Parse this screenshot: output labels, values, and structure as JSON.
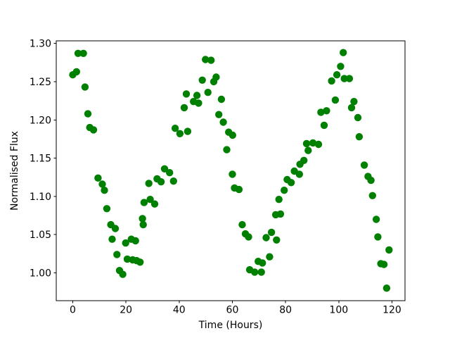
{
  "figure": {
    "background": "#ffffff"
  },
  "chart_data": {
    "type": "scatter",
    "title": "",
    "xlabel": "Time (Hours)",
    "ylabel": "Normalised Flux",
    "xlim": [
      -6.2,
      124.9
    ],
    "ylim": [
      0.9636,
      1.3034
    ],
    "xticks": [
      0,
      20,
      40,
      60,
      80,
      100,
      120
    ],
    "yticks": [
      1.0,
      1.05,
      1.1,
      1.15,
      1.2,
      1.25,
      1.3
    ],
    "grid": false,
    "legend": null,
    "marker": {
      "shape": "circle",
      "color": "#008000",
      "radius": 5.2
    },
    "series": [
      {
        "name": "normalised-flux-light-curve",
        "points": [
          [
            0.0,
            1.259
          ],
          [
            1.4,
            1.263
          ],
          [
            2.0,
            1.287
          ],
          [
            4.0,
            1.287
          ],
          [
            4.6,
            1.243
          ],
          [
            5.7,
            1.208
          ],
          [
            6.4,
            1.19
          ],
          [
            7.8,
            1.187
          ],
          [
            9.5,
            1.124
          ],
          [
            11.1,
            1.116
          ],
          [
            11.9,
            1.108
          ],
          [
            12.8,
            1.084
          ],
          [
            14.3,
            1.063
          ],
          [
            14.8,
            1.044
          ],
          [
            16.0,
            1.058
          ],
          [
            16.6,
            1.024
          ],
          [
            17.6,
            1.003
          ],
          [
            18.8,
            0.998
          ],
          [
            19.9,
            1.039
          ],
          [
            20.5,
            1.018
          ],
          [
            22.0,
            1.044
          ],
          [
            22.5,
            1.017
          ],
          [
            23.6,
            1.042
          ],
          [
            24.0,
            1.016
          ],
          [
            25.3,
            1.014
          ],
          [
            26.2,
            1.071
          ],
          [
            26.5,
            1.063
          ],
          [
            26.8,
            1.092
          ],
          [
            28.6,
            1.117
          ],
          [
            29.1,
            1.096
          ],
          [
            30.8,
            1.09
          ],
          [
            31.7,
            1.123
          ],
          [
            33.2,
            1.119
          ],
          [
            34.5,
            1.136
          ],
          [
            36.4,
            1.131
          ],
          [
            37.9,
            1.12
          ],
          [
            38.5,
            1.189
          ],
          [
            40.3,
            1.182
          ],
          [
            41.9,
            1.216
          ],
          [
            42.7,
            1.234
          ],
          [
            43.2,
            1.185
          ],
          [
            45.4,
            1.224
          ],
          [
            46.7,
            1.232
          ],
          [
            47.3,
            1.222
          ],
          [
            48.7,
            1.252
          ],
          [
            49.9,
            1.279
          ],
          [
            50.8,
            1.236
          ],
          [
            52.0,
            1.278
          ],
          [
            53.0,
            1.25
          ],
          [
            53.9,
            1.256
          ],
          [
            54.9,
            1.207
          ],
          [
            55.9,
            1.227
          ],
          [
            56.6,
            1.197
          ],
          [
            57.9,
            1.161
          ],
          [
            58.6,
            1.184
          ],
          [
            60.0,
            1.129
          ],
          [
            60.1,
            1.18
          ],
          [
            60.8,
            1.111
          ],
          [
            62.5,
            1.109
          ],
          [
            63.7,
            1.063
          ],
          [
            64.9,
            1.051
          ],
          [
            66.1,
            1.047
          ],
          [
            66.5,
            1.004
          ],
          [
            68.4,
            1.001
          ],
          [
            69.7,
            1.015
          ],
          [
            70.9,
            1.001
          ],
          [
            71.3,
            1.013
          ],
          [
            72.7,
            1.046
          ],
          [
            74.0,
            1.021
          ],
          [
            74.7,
            1.053
          ],
          [
            76.3,
            1.076
          ],
          [
            76.6,
            1.043
          ],
          [
            77.5,
            1.096
          ],
          [
            78.1,
            1.077
          ],
          [
            79.5,
            1.108
          ],
          [
            80.6,
            1.122
          ],
          [
            82.1,
            1.118
          ],
          [
            83.3,
            1.133
          ],
          [
            85.2,
            1.129
          ],
          [
            85.4,
            1.142
          ],
          [
            86.9,
            1.147
          ],
          [
            87.9,
            1.169
          ],
          [
            88.5,
            1.16
          ],
          [
            90.3,
            1.17
          ],
          [
            92.4,
            1.168
          ],
          [
            93.3,
            1.21
          ],
          [
            94.5,
            1.193
          ],
          [
            95.4,
            1.212
          ],
          [
            97.3,
            1.251
          ],
          [
            98.7,
            1.226
          ],
          [
            99.3,
            1.259
          ],
          [
            100.7,
            1.27
          ],
          [
            101.7,
            1.288
          ],
          [
            102.1,
            1.254
          ],
          [
            104.0,
            1.254
          ],
          [
            104.8,
            1.216
          ],
          [
            105.7,
            1.224
          ],
          [
            107.2,
            1.203
          ],
          [
            107.7,
            1.178
          ],
          [
            109.6,
            1.141
          ],
          [
            111.0,
            1.126
          ],
          [
            112.1,
            1.121
          ],
          [
            112.7,
            1.101
          ],
          [
            114.1,
            1.07
          ],
          [
            114.7,
            1.047
          ],
          [
            115.8,
            1.012
          ],
          [
            117.0,
            1.011
          ],
          [
            118.0,
            0.98
          ],
          [
            118.9,
            1.03
          ]
        ]
      }
    ]
  }
}
